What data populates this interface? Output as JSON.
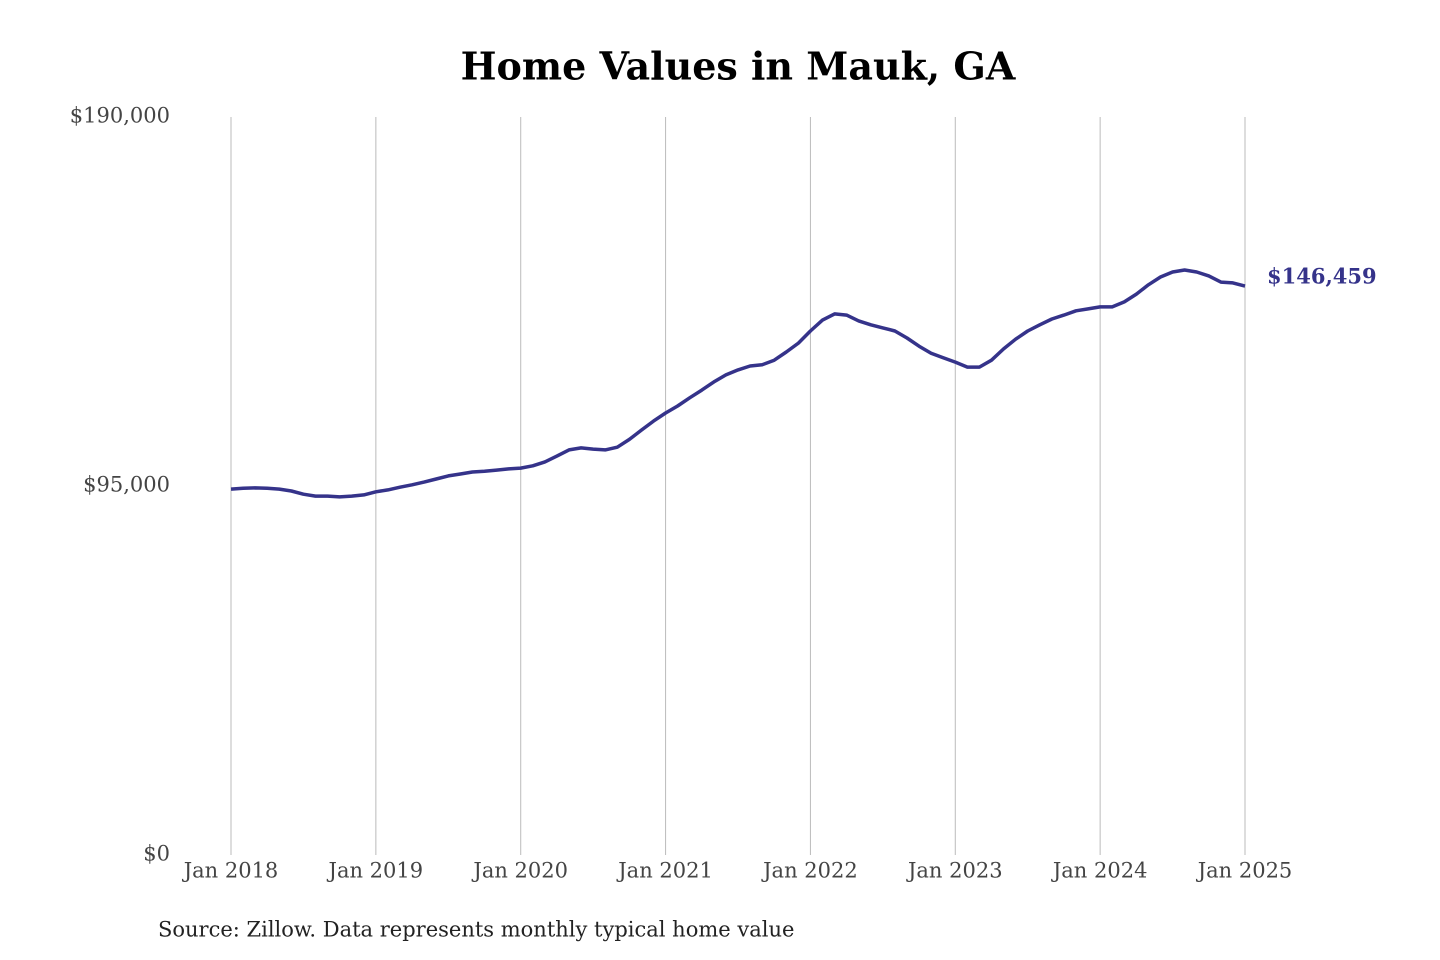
{
  "chart_data": {
    "type": "line",
    "title": "Home Values in Mauk, GA",
    "source": "Source: Zillow. Data represents monthly typical home value",
    "categories": [
      "Jan 2018",
      null,
      null,
      null,
      null,
      null,
      null,
      null,
      null,
      null,
      null,
      null,
      "Jan 2019",
      null,
      null,
      null,
      null,
      null,
      null,
      null,
      null,
      null,
      null,
      null,
      "Jan 2020",
      null,
      null,
      null,
      null,
      null,
      null,
      null,
      null,
      null,
      null,
      null,
      "Jan 2021",
      null,
      null,
      null,
      null,
      null,
      null,
      null,
      null,
      null,
      null,
      null,
      "Jan 2022",
      null,
      null,
      null,
      null,
      null,
      null,
      null,
      null,
      null,
      null,
      null,
      "Jan 2023",
      null,
      null,
      null,
      null,
      null,
      null,
      null,
      null,
      null,
      null,
      null,
      "Jan 2024",
      null,
      null,
      null,
      null,
      null,
      null,
      null,
      null,
      null,
      null,
      null,
      "Jan 2025"
    ],
    "values": [
      94200,
      94400,
      94500,
      94400,
      94200,
      93700,
      92900,
      92400,
      92400,
      92200,
      92400,
      92700,
      93500,
      94000,
      94700,
      95300,
      96000,
      96800,
      97600,
      98100,
      98600,
      98800,
      99100,
      99400,
      99600,
      100200,
      101200,
      102700,
      104300,
      104800,
      104500,
      104300,
      105000,
      107000,
      109400,
      111700,
      113800,
      115600,
      117700,
      119700,
      121800,
      123600,
      124900,
      125900,
      126200,
      127400,
      129500,
      131800,
      134900,
      137700,
      139300,
      139000,
      137500,
      136500,
      135700,
      134900,
      133100,
      131000,
      129200,
      128000,
      126900,
      125600,
      125600,
      127400,
      130300,
      132800,
      134900,
      136500,
      138000,
      139000,
      140100,
      140600,
      141100,
      141100,
      142400,
      144400,
      146800,
      148800,
      150100,
      150600,
      150100,
      149100,
      147500,
      147300,
      146459
    ],
    "value_labels": [
      null,
      null,
      null,
      null,
      null,
      null,
      null,
      null,
      null,
      null,
      null,
      null,
      null,
      null,
      null,
      null,
      null,
      null,
      null,
      null,
      null,
      null,
      null,
      null,
      null,
      null,
      null,
      null,
      null,
      null,
      null,
      null,
      null,
      null,
      null,
      null,
      null,
      null,
      null,
      null,
      null,
      null,
      null,
      null,
      null,
      null,
      null,
      null,
      null,
      null,
      null,
      null,
      null,
      null,
      null,
      null,
      null,
      null,
      null,
      null,
      null,
      null,
      null,
      null,
      null,
      null,
      null,
      null,
      null,
      null,
      null,
      null,
      null,
      null,
      null,
      null,
      null,
      null,
      null,
      null,
      null,
      null,
      null,
      null,
      "$146,459"
    ],
    "color": "#35338a",
    "ylim": [
      0,
      190000
    ],
    "yticks": [
      {
        "value": 0,
        "label": "$0"
      },
      {
        "value": 95000,
        "label": "$95,000"
      },
      {
        "value": 190000,
        "label": "$190,000"
      }
    ],
    "grid": "x"
  }
}
